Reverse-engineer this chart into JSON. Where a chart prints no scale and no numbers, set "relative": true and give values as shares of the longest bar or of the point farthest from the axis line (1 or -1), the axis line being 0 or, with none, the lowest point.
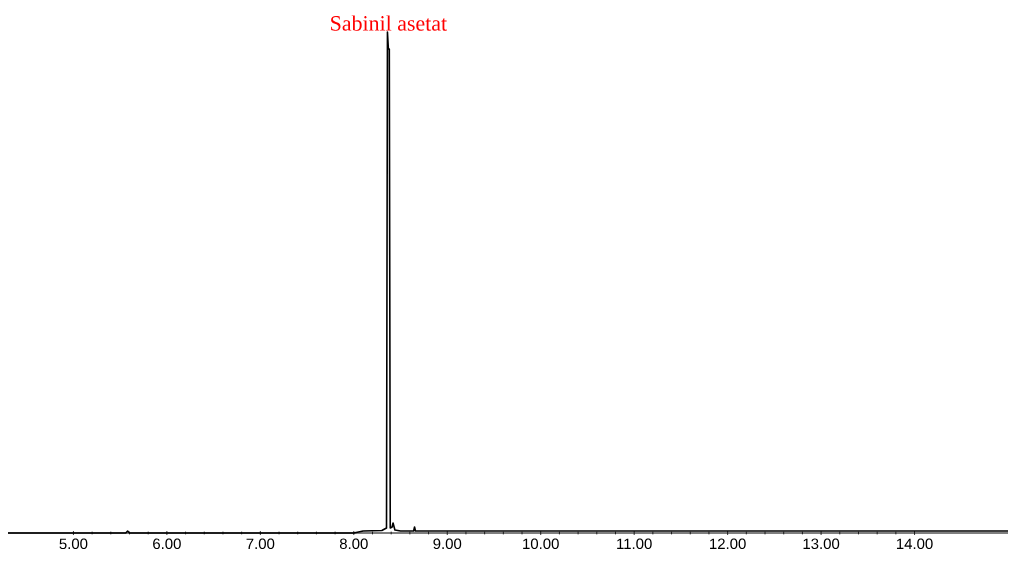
{
  "chart_data": {
    "type": "line",
    "relative": true,
    "xlim": [
      4.3,
      15.0
    ],
    "xticks": [
      {
        "value": 5,
        "label": "5.00"
      },
      {
        "value": 6,
        "label": "6.00"
      },
      {
        "value": 7,
        "label": "7.00"
      },
      {
        "value": 8,
        "label": "8.00"
      },
      {
        "value": 9,
        "label": "9.00"
      },
      {
        "value": 10,
        "label": "10.00"
      },
      {
        "value": 11,
        "label": "11.00"
      },
      {
        "value": 12,
        "label": "12.00"
      },
      {
        "value": 13,
        "label": "13.00"
      },
      {
        "value": 14,
        "label": "14.00"
      }
    ],
    "series": [
      {
        "color": "#000000",
        "x": [
          4.3,
          5.56,
          5.58,
          5.6,
          8.0,
          8.1,
          8.3,
          8.35,
          8.36,
          8.37,
          8.38,
          8.39,
          8.41,
          8.42,
          8.44,
          8.5,
          8.64,
          8.65,
          8.66,
          9.0,
          10.0,
          15.0
        ],
        "values": [
          0,
          0,
          0.004,
          0,
          0,
          0.004,
          0.005,
          0.01,
          1.0,
          0.966,
          0.966,
          0.01,
          0.012,
          0.02,
          0.006,
          0.004,
          0.004,
          0.012,
          0.004,
          0.004,
          0.004,
          0.004
        ]
      }
    ],
    "annotations": [
      {
        "text": "Sabinil asetat",
        "x": 8.37,
        "y": 1.0
      }
    ]
  }
}
